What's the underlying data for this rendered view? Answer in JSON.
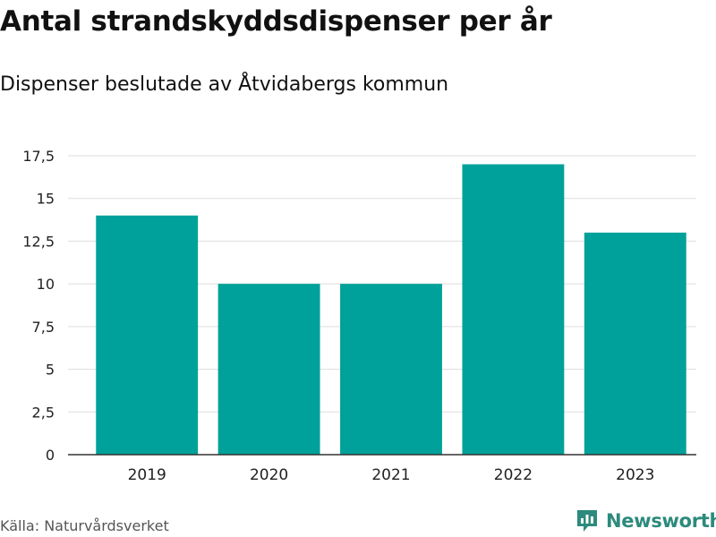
{
  "title": "Antal strandskyddsdispenser per år",
  "subtitle": "Dispenser beslutade av Åtvidabergs kommun",
  "source": "Källa: Naturvårdsverket",
  "brand": {
    "name": "Newsworthy",
    "logo_icon": "newsworthy-chart-logo-icon",
    "color": "#2d8a7c"
  },
  "colors": {
    "bar": "#00a19a",
    "grid": "#dddddd",
    "axis": "#333333",
    "tick_text": "#222222"
  },
  "chart_data": {
    "type": "bar",
    "categories": [
      "2019",
      "2020",
      "2021",
      "2022",
      "2023"
    ],
    "values": [
      14,
      10,
      10,
      17,
      13
    ],
    "ylim": [
      0,
      17.5
    ],
    "yticks": [
      0,
      2.5,
      5,
      7.5,
      10,
      12.5,
      15,
      17.5
    ],
    "ytick_labels": [
      "0",
      "2,5",
      "5",
      "7,5",
      "10",
      "12,5",
      "15",
      "17,5"
    ],
    "xlabel": "",
    "ylabel": "",
    "grid": true,
    "legend": false
  }
}
